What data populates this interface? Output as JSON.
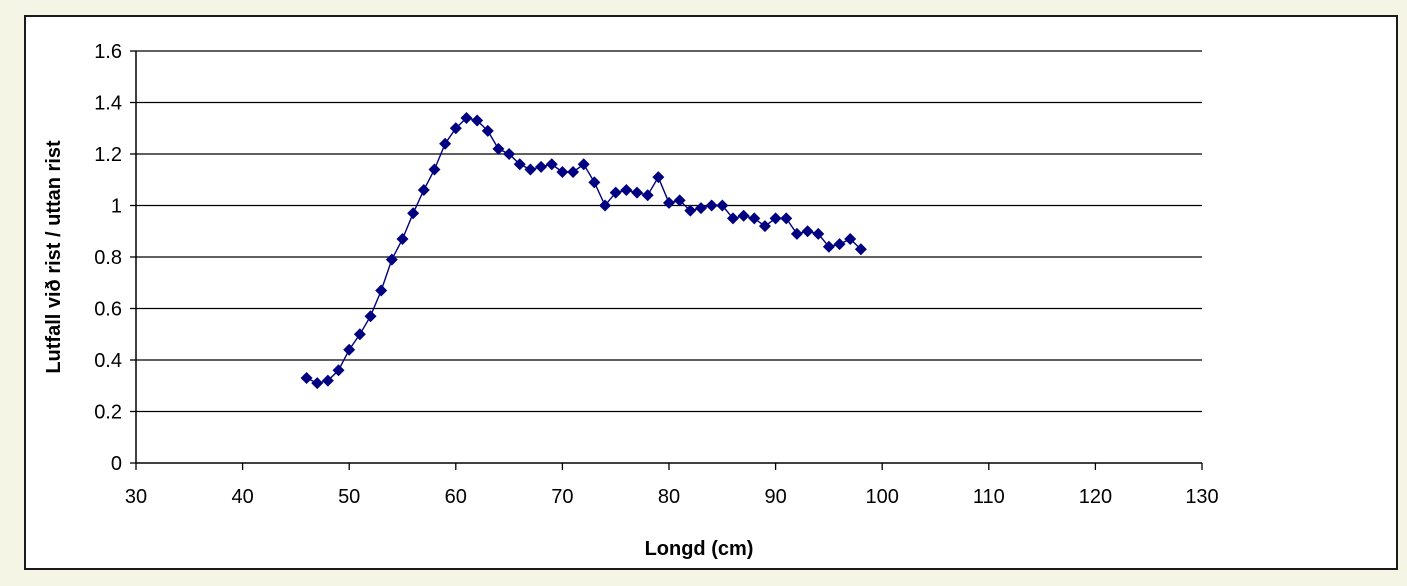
{
  "chart_data": {
    "type": "line",
    "xlabel": "Longd (cm)",
    "ylabel": "Lutfall við rist / uttan rist",
    "xlim": [
      30,
      130
    ],
    "ylim": [
      0,
      1.6
    ],
    "xticks": [
      "30",
      "40",
      "50",
      "60",
      "70",
      "80",
      "90",
      "100",
      "110",
      "120",
      "130"
    ],
    "yticks": [
      "0",
      "0.2",
      "0.4",
      "0.6",
      "0.8",
      "1",
      "1.2",
      "1.4",
      "1.6"
    ],
    "grid": "horizontal",
    "marker": "diamond",
    "series": [
      {
        "color": "#000080",
        "x": [
          46,
          47,
          48,
          49,
          50,
          51,
          52,
          53,
          54,
          55,
          56,
          57,
          58,
          59,
          60,
          61,
          62,
          63,
          64,
          65,
          66,
          67,
          68,
          69,
          70,
          71,
          72,
          73,
          74,
          75,
          76,
          77,
          78,
          79,
          80,
          81,
          82,
          83,
          84,
          85,
          86,
          87,
          88,
          89,
          90,
          91,
          92,
          93,
          94,
          95,
          96,
          97,
          98
        ],
        "y": [
          0.33,
          0.31,
          0.32,
          0.36,
          0.44,
          0.5,
          0.57,
          0.67,
          0.79,
          0.87,
          0.97,
          1.06,
          1.14,
          1.24,
          1.3,
          1.34,
          1.33,
          1.29,
          1.22,
          1.2,
          1.16,
          1.14,
          1.15,
          1.16,
          1.13,
          1.13,
          1.16,
          1.09,
          1.0,
          1.05,
          1.06,
          1.05,
          1.04,
          1.11,
          1.01,
          1.02,
          0.98,
          0.99,
          1.0,
          1.0,
          0.95,
          0.96,
          0.95,
          0.92,
          0.95,
          0.95,
          0.89,
          0.9,
          0.89,
          0.84,
          0.85,
          0.87,
          0.83
        ]
      }
    ]
  }
}
